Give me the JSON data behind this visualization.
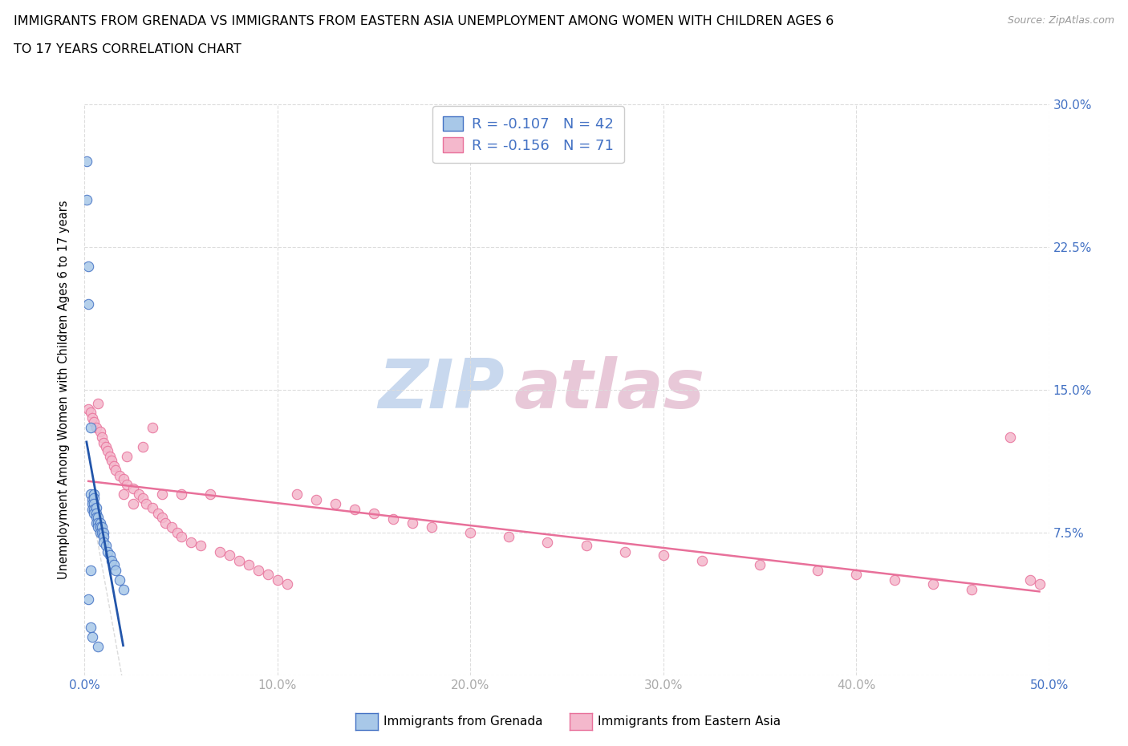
{
  "title_line1": "IMMIGRANTS FROM GRENADA VS IMMIGRANTS FROM EASTERN ASIA UNEMPLOYMENT AMONG WOMEN WITH CHILDREN AGES 6",
  "title_line2": "TO 17 YEARS CORRELATION CHART",
  "source_text": "Source: ZipAtlas.com",
  "ylabel": "Unemployment Among Women with Children Ages 6 to 17 years",
  "xlim": [
    0.0,
    0.5
  ],
  "ylim": [
    0.0,
    0.3
  ],
  "xticks": [
    0.0,
    0.1,
    0.2,
    0.3,
    0.4,
    0.5
  ],
  "yticks": [
    0.0,
    0.075,
    0.15,
    0.225,
    0.3
  ],
  "xticklabels": [
    "0.0%",
    "10.0%",
    "20.0%",
    "30.0%",
    "40.0%",
    "50.0%"
  ],
  "yticklabels_right": [
    "",
    "7.5%",
    "15.0%",
    "22.5%",
    "30.0%"
  ],
  "grenada_R": -0.107,
  "grenada_N": 42,
  "eastern_asia_R": -0.156,
  "eastern_asia_N": 71,
  "grenada_color": "#a8c8e8",
  "eastern_asia_color": "#f4b8cc",
  "grenada_edge_color": "#4472c4",
  "eastern_asia_edge_color": "#e8709a",
  "grenada_line_color": "#2255aa",
  "eastern_asia_line_color": "#e8709a",
  "watermark_zip_color": "#c8d8ee",
  "watermark_atlas_color": "#e8c8d8",
  "background_color": "#ffffff",
  "grenada_x": [
    0.001,
    0.001,
    0.002,
    0.002,
    0.002,
    0.003,
    0.003,
    0.003,
    0.004,
    0.004,
    0.004,
    0.004,
    0.005,
    0.005,
    0.005,
    0.005,
    0.005,
    0.006,
    0.006,
    0.006,
    0.006,
    0.007,
    0.007,
    0.007,
    0.008,
    0.008,
    0.008,
    0.009,
    0.009,
    0.01,
    0.01,
    0.01,
    0.011,
    0.012,
    0.013,
    0.014,
    0.015,
    0.016,
    0.018,
    0.02,
    0.003,
    0.007
  ],
  "grenada_y": [
    0.27,
    0.25,
    0.215,
    0.195,
    0.04,
    0.13,
    0.095,
    0.025,
    0.092,
    0.09,
    0.087,
    0.02,
    0.095,
    0.093,
    0.09,
    0.087,
    0.085,
    0.088,
    0.085,
    0.083,
    0.08,
    0.083,
    0.08,
    0.078,
    0.08,
    0.078,
    0.075,
    0.078,
    0.075,
    0.075,
    0.073,
    0.07,
    0.068,
    0.065,
    0.063,
    0.06,
    0.058,
    0.055,
    0.05,
    0.045,
    0.055,
    0.015
  ],
  "eastern_asia_x": [
    0.002,
    0.003,
    0.004,
    0.005,
    0.006,
    0.007,
    0.008,
    0.009,
    0.01,
    0.011,
    0.012,
    0.013,
    0.014,
    0.015,
    0.016,
    0.018,
    0.02,
    0.02,
    0.022,
    0.022,
    0.025,
    0.025,
    0.028,
    0.03,
    0.03,
    0.032,
    0.035,
    0.035,
    0.038,
    0.04,
    0.04,
    0.042,
    0.045,
    0.048,
    0.05,
    0.05,
    0.055,
    0.06,
    0.065,
    0.07,
    0.075,
    0.08,
    0.085,
    0.09,
    0.095,
    0.1,
    0.105,
    0.11,
    0.12,
    0.13,
    0.14,
    0.15,
    0.16,
    0.17,
    0.18,
    0.2,
    0.22,
    0.24,
    0.26,
    0.28,
    0.3,
    0.32,
    0.35,
    0.38,
    0.4,
    0.42,
    0.44,
    0.46,
    0.48,
    0.49,
    0.495
  ],
  "eastern_asia_y": [
    0.14,
    0.138,
    0.135,
    0.133,
    0.13,
    0.143,
    0.128,
    0.125,
    0.122,
    0.12,
    0.118,
    0.115,
    0.113,
    0.11,
    0.108,
    0.105,
    0.103,
    0.095,
    0.1,
    0.115,
    0.098,
    0.09,
    0.095,
    0.093,
    0.12,
    0.09,
    0.13,
    0.088,
    0.085,
    0.083,
    0.095,
    0.08,
    0.078,
    0.075,
    0.073,
    0.095,
    0.07,
    0.068,
    0.095,
    0.065,
    0.063,
    0.06,
    0.058,
    0.055,
    0.053,
    0.05,
    0.048,
    0.095,
    0.092,
    0.09,
    0.087,
    0.085,
    0.082,
    0.08,
    0.078,
    0.075,
    0.073,
    0.07,
    0.068,
    0.065,
    0.063,
    0.06,
    0.058,
    0.055,
    0.053,
    0.05,
    0.048,
    0.045,
    0.125,
    0.05,
    0.048
  ]
}
